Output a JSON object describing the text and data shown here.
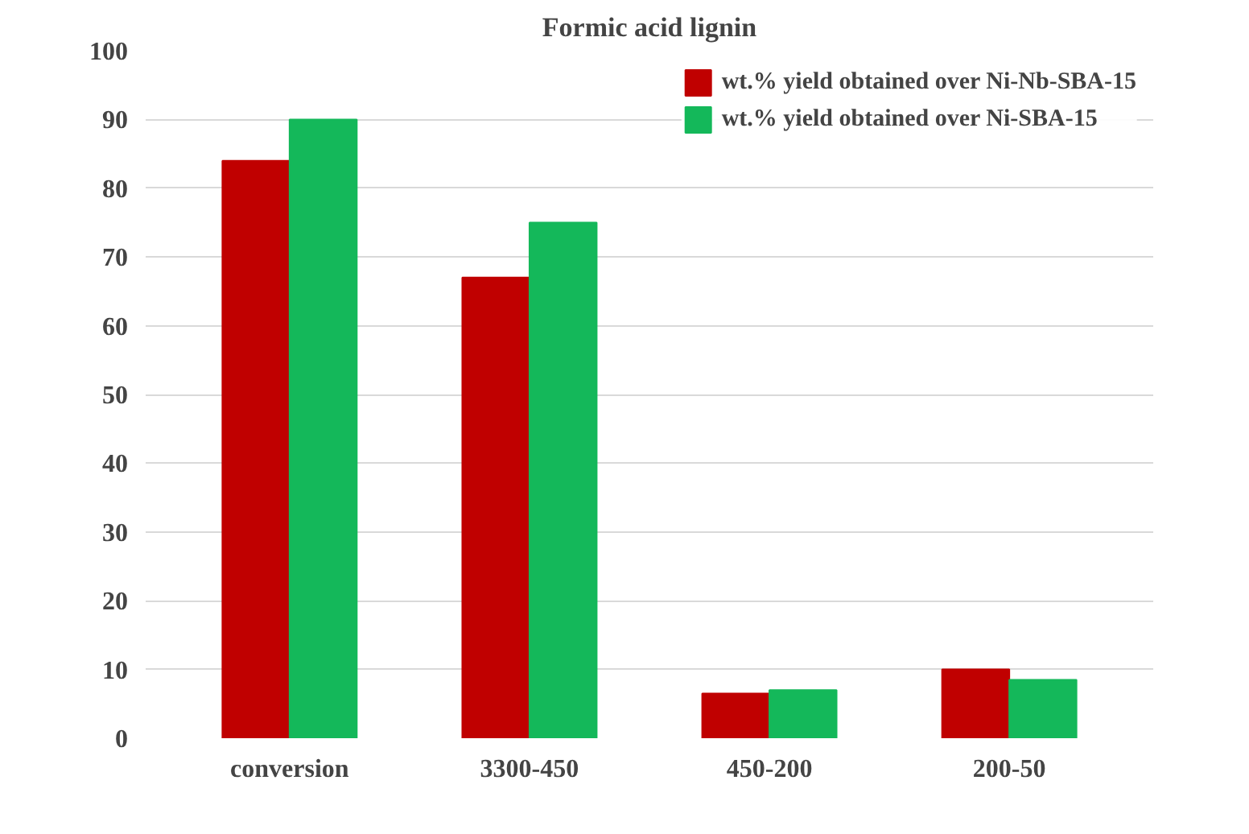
{
  "chart_data": {
    "type": "bar",
    "title": "Formic acid lignin",
    "categories": [
      "conversion",
      "3300-450",
      "450-200",
      "200-50"
    ],
    "series": [
      {
        "name": "wt.% yield obtained over Ni-Nb-SBA-15",
        "color": "#c00000",
        "values": [
          84,
          67,
          6.5,
          10
        ]
      },
      {
        "name": "wt.% yield obtained over Ni-SBA-15",
        "color": "#14b85a",
        "values": [
          90,
          75,
          7,
          8.5
        ]
      }
    ],
    "ylim": [
      0,
      100
    ],
    "yticks": [
      0,
      10,
      20,
      30,
      40,
      50,
      60,
      70,
      80,
      90,
      100
    ],
    "grid": "y",
    "legend": "top right"
  }
}
